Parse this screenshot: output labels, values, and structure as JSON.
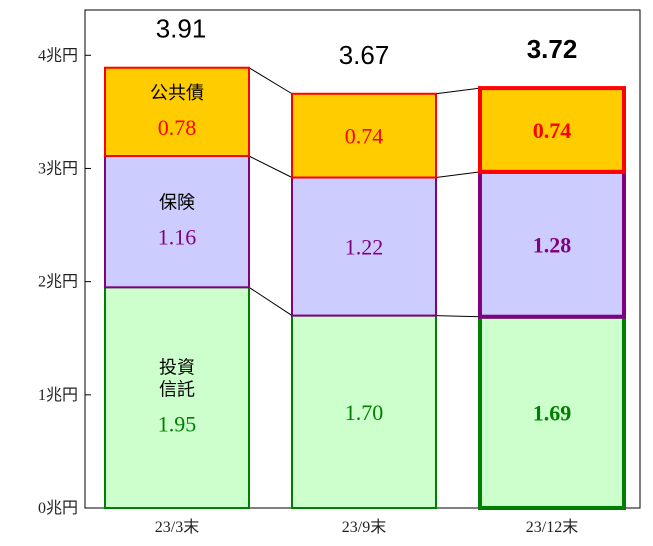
{
  "chart_data": {
    "type": "bar",
    "stacked": true,
    "categories": [
      "23/3末",
      "23/9末",
      "23/12末"
    ],
    "y_ticks": [
      "0兆円",
      "1兆円",
      "2兆円",
      "3兆円",
      "4兆円"
    ],
    "ylim": [
      0,
      4.4
    ],
    "grid": false,
    "series": [
      {
        "name": "投資信託",
        "label_lines": [
          "投資",
          "信託"
        ],
        "values": [
          1.95,
          1.7,
          1.69
        ],
        "value_labels": [
          "1.95",
          "1.70",
          "1.69"
        ],
        "fill": "#ccffcc",
        "stroke": "#008000",
        "text_color": "#008000"
      },
      {
        "name": "保険",
        "label_lines": [
          "保険"
        ],
        "values": [
          1.16,
          1.22,
          1.28
        ],
        "value_labels": [
          "1.16",
          "1.22",
          "1.28"
        ],
        "fill": "#ccccff",
        "stroke": "#800080",
        "text_color": "#800080"
      },
      {
        "name": "公共債",
        "label_lines": [
          "公共債"
        ],
        "values": [
          0.78,
          0.74,
          0.74
        ],
        "value_labels": [
          "0.78",
          "0.74",
          "0.74"
        ],
        "fill": "#ffcc00",
        "stroke": "#ff0000",
        "text_color": "#ff0000"
      }
    ],
    "totals": [
      "3.91",
      "3.67",
      "3.72"
    ],
    "highlight_index": 2
  }
}
